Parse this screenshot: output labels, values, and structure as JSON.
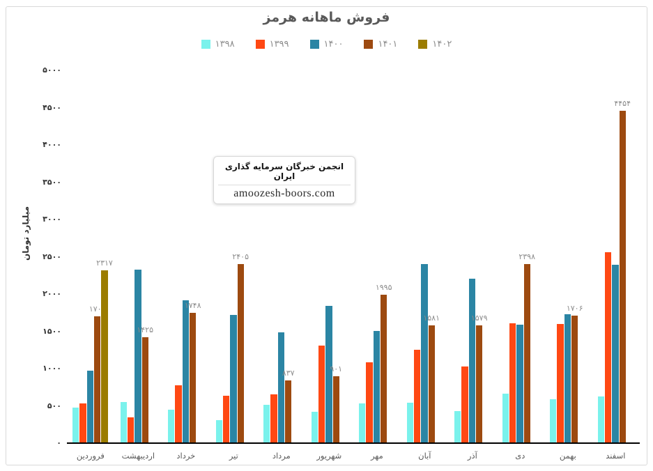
{
  "chart_data": {
    "type": "bar",
    "title": "فروش ماهانه هرمز",
    "ylabel": "میلیارد تومان",
    "ylim": [
      0,
      5000
    ],
    "ytick_step": 500,
    "grid": false,
    "legend_position": "top-center",
    "categories": [
      "فروردین",
      "اردیبهشت",
      "خرداد",
      "تیر",
      "مرداد",
      "شهریور",
      "مهر",
      "آبان",
      "آذر",
      "دی",
      "بهمن",
      "اسفند"
    ],
    "y_tick_values": [
      0,
      500,
      1000,
      1500,
      2000,
      2500,
      3000,
      3500,
      4000,
      4500,
      5000
    ],
    "y_tick_labels": [
      "۰",
      "۵۰۰",
      "۱۰۰۰",
      "۱۵۰۰",
      "۲۰۰۰",
      "۲۵۰۰",
      "۳۰۰۰",
      "۳۵۰۰",
      "۴۰۰۰",
      "۴۵۰۰",
      "۵۰۰۰"
    ],
    "series": [
      {
        "name": "۱۳۹۸",
        "color": "#7af2ec",
        "values": [
          480,
          555,
          445,
          305,
          515,
          420,
          535,
          545,
          430,
          660,
          585,
          630
        ],
        "labels": null
      },
      {
        "name": "۱۳۹۹",
        "color": "#ff4813",
        "values": [
          530,
          350,
          775,
          640,
          655,
          1310,
          1085,
          1255,
          1030,
          1605,
          1600,
          2565
        ],
        "labels": null
      },
      {
        "name": "۱۴۰۰",
        "color": "#2b85a4",
        "values": [
          975,
          2330,
          1920,
          1715,
          1490,
          1840,
          1505,
          2400,
          2210,
          1590,
          1725,
          2390
        ],
        "labels": null
      },
      {
        "name": "۱۴۰۱",
        "color": "#9d4a10",
        "values": [
          1701,
          1425,
          1748,
          2405,
          837,
          901,
          1995,
          1581,
          1579,
          2398,
          1706,
          4454
        ],
        "labels": [
          "۱۷۰۱",
          "۱۴۲۵",
          "۱۷۴۸",
          "۲۴۰۵",
          "۸۳۷",
          "۹۰۱",
          "۱۹۹۵",
          "۱۵۸۱",
          "۱۵۷۹",
          "۲۳۹۸",
          "۱۷۰۶",
          "۴۴۵۴"
        ]
      },
      {
        "name": "۱۴۰۲",
        "color": "#9b7c00",
        "values": [
          2317,
          null,
          null,
          null,
          null,
          null,
          null,
          null,
          null,
          null,
          null,
          null
        ],
        "labels": [
          "۲۳۱۷",
          "",
          "",
          "",
          "",
          "",
          "",
          "",
          "",
          "",
          "",
          ""
        ]
      }
    ]
  },
  "watermark": {
    "line1": "انجمن خبرگان سرمایه گذاری ایران",
    "line2": "amoozesh-boors.com"
  },
  "colors": {
    "title": "#595959",
    "legend_text": "#8c8c8c",
    "data_label": "#8c8c8c",
    "axis_tick_text": "#333333",
    "month_text": "#595959",
    "axis_line": "#000000",
    "card_border": "#d9d9d9"
  }
}
